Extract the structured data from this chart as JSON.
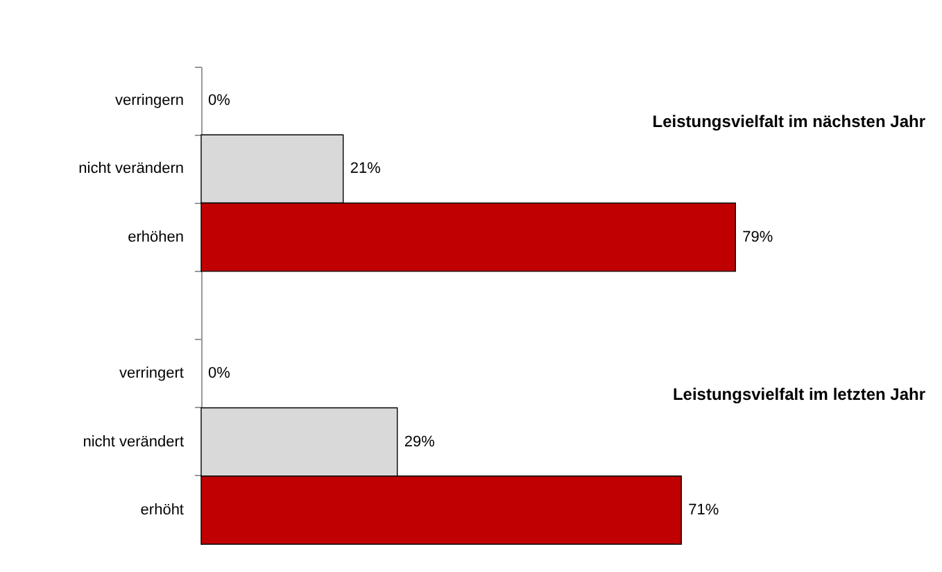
{
  "chart_data": {
    "type": "bar",
    "orientation": "horizontal",
    "categories": [
      "verringern",
      "nicht verändern",
      "erhöhen",
      null,
      "verringert",
      "nicht verändert",
      "erhöht"
    ],
    "values": [
      0,
      21,
      79,
      null,
      0,
      29,
      71
    ],
    "colors": [
      "#d9d9d9",
      "#d9d9d9",
      "#c00000",
      null,
      "#d9d9d9",
      "#d9d9d9",
      "#c00000"
    ],
    "value_labels": [
      "0%",
      "21%",
      "79%",
      null,
      "0%",
      "29%",
      "71%"
    ],
    "annotations": [
      "Leistungsvielfalt im nächsten Jahr",
      "Leistungsvielfalt im letzten Jahr"
    ],
    "tick_labels": "y"
  }
}
